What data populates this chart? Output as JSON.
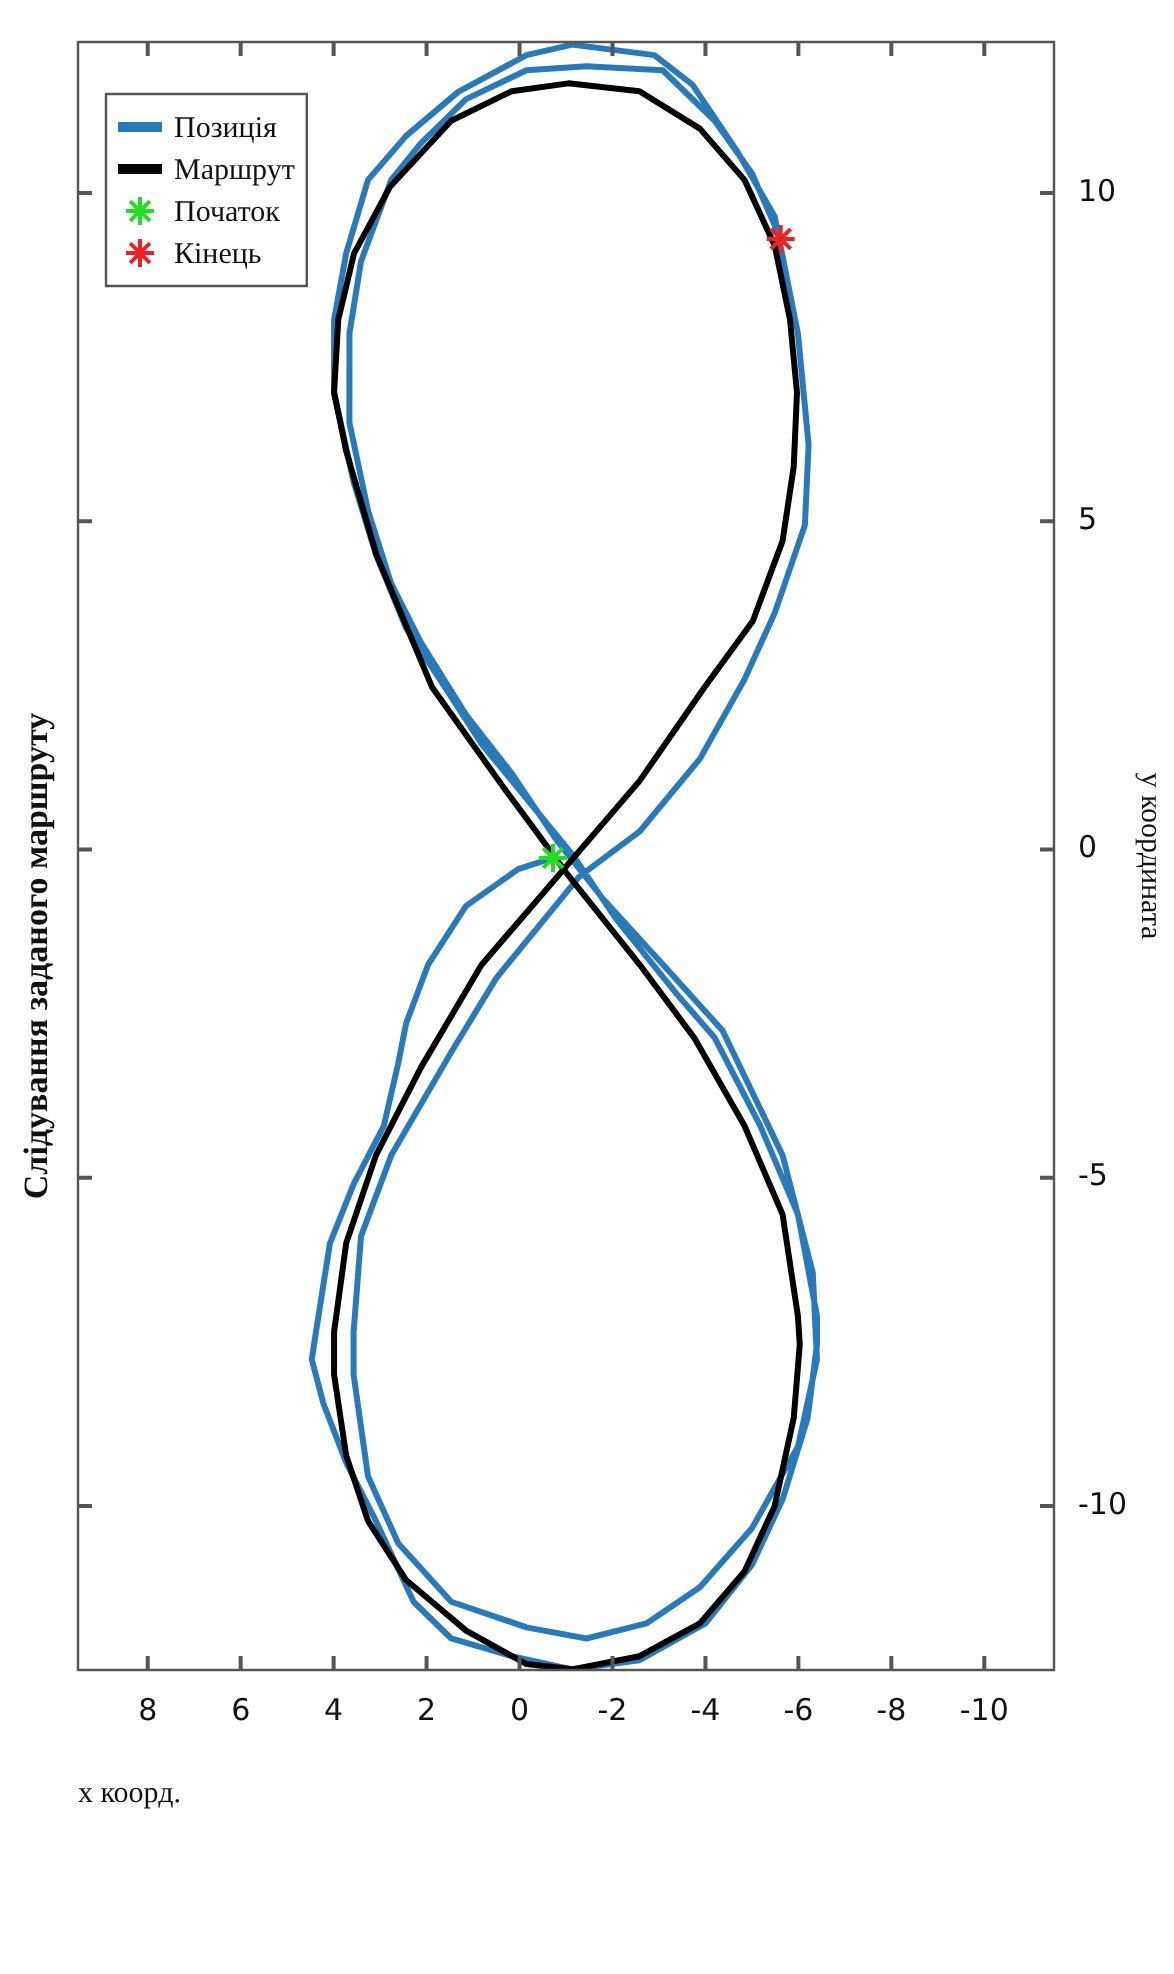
{
  "chart_data": {
    "type": "line",
    "title": "Слідування заданого маршруту",
    "xlabel": "x коорд.",
    "ylabel": "у координата",
    "xlim": [
      9.5,
      -11.5
    ],
    "xticks": [
      8,
      6,
      4,
      2,
      0,
      -2,
      -4,
      -6,
      -8,
      -10
    ],
    "ylim": [
      -12.5,
      12.3
    ],
    "yticks": [
      -10,
      -5,
      0,
      5,
      10
    ],
    "grid": false,
    "legend": "top left",
    "series": [
      {
        "name": "Позиція",
        "marker": "none",
        "color": "#2a7ab9",
        "values": [
          -0.13,
          -0.3,
          -0.86,
          -1.76,
          -2.65,
          -3.26,
          -4.21,
          -5.1,
          -6.0,
          -7.35,
          -7.77,
          -8.44,
          -9.34,
          -10.23,
          -11.46,
          -12.02,
          -12.29,
          -12.49,
          -12.35,
          -11.79,
          -10.9,
          -9.9,
          -8.66,
          -7.54,
          -7.11,
          -5.56,
          -4.21,
          -2.87,
          -2.2,
          -1.07,
          -0.07,
          1.61,
          2.5,
          3.37,
          4.49,
          5.6,
          6.96,
          8.07,
          9.08,
          10.2,
          10.87,
          11.54,
          12.1,
          12.26,
          12.1,
          11.65,
          10.65,
          9.64,
          7.86,
          6.16,
          4.94,
          3.6,
          2.59,
          1.38,
          0.27,
          -0.41,
          -1.96,
          -3.09,
          -4.66,
          -5.89,
          -7.35,
          -8.0,
          -9.55,
          -10.57,
          -11.46,
          -11.85,
          -12.02,
          -11.79,
          -11.24,
          -10.34,
          -9.1,
          -7.77,
          -6.45,
          -4.66,
          -2.76,
          -1.75,
          -0.74,
          0.15,
          1.16,
          2.05,
          3.15,
          4.05,
          5.16,
          6.5,
          7.86,
          8.96,
          10.2,
          10.76,
          11.43,
          11.87,
          11.93,
          11.87,
          11.1,
          10.3,
          9.3
        ],
        "x": [
          -0.72,
          0.03,
          1.15,
          1.97,
          2.44,
          2.61,
          2.92,
          3.57,
          4.08,
          4.38,
          4.47,
          4.22,
          3.73,
          3.09,
          2.28,
          1.47,
          0.17,
          -1.13,
          -2.58,
          -4.0,
          -5.0,
          -5.66,
          -6.2,
          -6.4,
          -6.4,
          -5.99,
          -5.18,
          -4.2,
          -3.38,
          -2.09,
          -1.13,
          0.82,
          1.63,
          2.44,
          3.09,
          3.57,
          3.99,
          3.99,
          3.73,
          3.26,
          2.44,
          1.32,
          -0.15,
          -1.13,
          -2.9,
          -3.72,
          -4.67,
          -5.49,
          -5.99,
          -6.22,
          -6.14,
          -5.49,
          -4.84,
          -3.88,
          -2.58,
          -1.29,
          0.5,
          1.47,
          2.76,
          3.41,
          3.57,
          3.57,
          3.26,
          2.61,
          1.47,
          -0.15,
          -1.44,
          -2.73,
          -3.88,
          -5.0,
          -5.99,
          -6.4,
          -6.31,
          -5.66,
          -4.37,
          -3.08,
          -1.78,
          -0.79,
          0.17,
          1.15,
          2.12,
          2.76,
          3.26,
          3.66,
          3.66,
          3.41,
          2.76,
          2.12,
          1.15,
          -0.15,
          -1.44,
          -3.08,
          -4.2,
          -5.0,
          -5.62
        ]
      },
      {
        "name": "Маршрут",
        "marker": "none",
        "color": "#000000",
        "values": [
          1.0,
          2.47,
          4.49,
          6.07,
          6.96,
          8.07,
          9.08,
          10.09,
          11.1,
          11.55,
          11.67,
          11.55,
          10.98,
          10.2,
          9.2,
          8.07,
          6.96,
          5.83,
          4.7,
          3.48,
          2.47,
          1.04,
          -1.76,
          -3.32,
          -4.66,
          -6.0,
          -7.35,
          -8.0,
          -9.23,
          -10.23,
          -11.13,
          -11.9,
          -12.41,
          -12.49,
          -12.29,
          -11.79,
          -11.0,
          -10.0,
          -8.66,
          -7.54,
          -7.11,
          -5.56,
          -4.21,
          -2.87,
          -1.75,
          -0.36,
          0.3,
          0.97
        ],
        "x": [
          0.4,
          1.88,
          3.08,
          3.73,
          3.99,
          3.9,
          3.56,
          2.79,
          1.47,
          0.17,
          -1.05,
          -2.58,
          -3.88,
          -4.84,
          -5.49,
          -5.82,
          -5.97,
          -5.9,
          -5.66,
          -5.02,
          -3.98,
          -2.58,
          0.82,
          2.12,
          3.09,
          3.73,
          3.99,
          3.99,
          3.73,
          3.26,
          2.44,
          1.15,
          -0.15,
          -1.13,
          -2.58,
          -3.88,
          -4.84,
          -5.49,
          -5.9,
          -6.03,
          -5.99,
          -5.66,
          -4.84,
          -3.76,
          -2.58,
          -1.01,
          -0.33,
          0.37
        ]
      },
      {
        "name": "Початок",
        "type": "scatter",
        "marker": "cross",
        "color": "#22dd22",
        "x": [
          -0.72
        ],
        "values": [
          -0.13
        ]
      },
      {
        "name": "Кінець",
        "type": "scatter",
        "marker": "cross",
        "color": "#ee2222",
        "x": [
          -5.62
        ],
        "values": [
          9.3
        ]
      }
    ]
  }
}
